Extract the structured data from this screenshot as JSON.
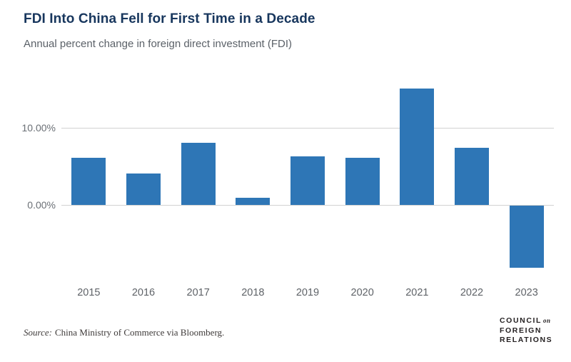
{
  "header": {
    "title": "FDI Into China Fell for First Time in a Decade",
    "subtitle": "Annual percent change in foreign direct investment (FDI)"
  },
  "chart_data": {
    "type": "bar",
    "categories": [
      "2015",
      "2016",
      "2017",
      "2018",
      "2019",
      "2020",
      "2021",
      "2022",
      "2023"
    ],
    "values": [
      6.1,
      4.1,
      8.0,
      0.9,
      6.3,
      6.1,
      15.0,
      7.4,
      -8.0
    ],
    "title": "FDI Into China Fell for First Time in a Decade",
    "subtitle": "Annual percent change in foreign direct investment (FDI)",
    "xlabel": "",
    "ylabel": "",
    "yticks": [
      {
        "value": 10,
        "label": "10.00%"
      },
      {
        "value": 0,
        "label": "0.00%"
      }
    ],
    "ylim": [
      -9.6,
      16.3
    ],
    "grid": "horizontal-only",
    "legend": "none",
    "bar_color": "#2E76B6",
    "gridline_color": "#D2D2D2"
  },
  "footer": {
    "source_label": "Source:",
    "source_text": "China Ministry of Commerce via Bloomberg."
  },
  "logo": {
    "line1_main": "COUNCIL",
    "line1_accent": "on",
    "line2": "FOREIGN",
    "line3": "RELATIONS"
  },
  "colors": {
    "title": "#17365D",
    "subtitle": "#5B6168",
    "axis_label": "#6A6F75",
    "bar": "#2E76B6",
    "gridline": "#D2D2D2",
    "source": "#3E3A39",
    "logo": "#231F20"
  }
}
